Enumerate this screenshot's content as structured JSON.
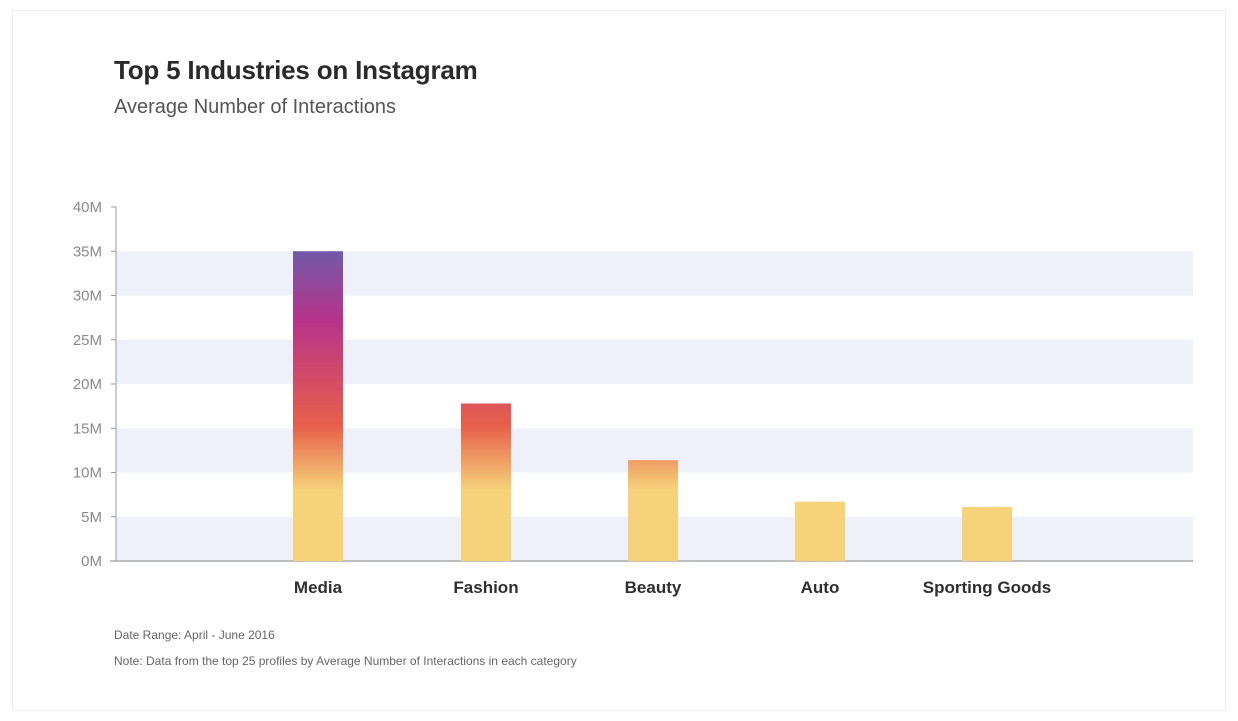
{
  "header": {
    "title": "Top 5 Industries on Instagram",
    "subtitle": "Average Number of Interactions"
  },
  "footer": {
    "date_range": "Date Range: April - June 2016",
    "note": "Note: Data from the top 25 profiles by Average Number of Interactions in each category"
  },
  "colors": {
    "band": "#eef0fa",
    "gradient_bottom": "#f6d37a",
    "gradient_orange": "#e8604a",
    "gradient_magenta": "#b8338a",
    "gradient_top": "#6f5aa8",
    "axis": "#9b9b9b"
  },
  "chart_data": {
    "type": "bar",
    "title": "Top 5 Industries on Instagram",
    "subtitle": "Average Number of Interactions",
    "categories": [
      "Media",
      "Fashion",
      "Beauty",
      "Auto",
      "Sporting Goods"
    ],
    "values": [
      35000000,
      17800000,
      11400000,
      6700000,
      6100000
    ],
    "ylim": [
      0,
      40000000
    ],
    "yticks": [
      0,
      5000000,
      10000000,
      15000000,
      20000000,
      25000000,
      30000000,
      35000000,
      40000000
    ],
    "ytick_labels": [
      "0M",
      "5M",
      "10M",
      "15M",
      "20M",
      "25M",
      "30M",
      "35M",
      "40M"
    ],
    "grid": "alternating horizontal bands",
    "legend": "none"
  }
}
